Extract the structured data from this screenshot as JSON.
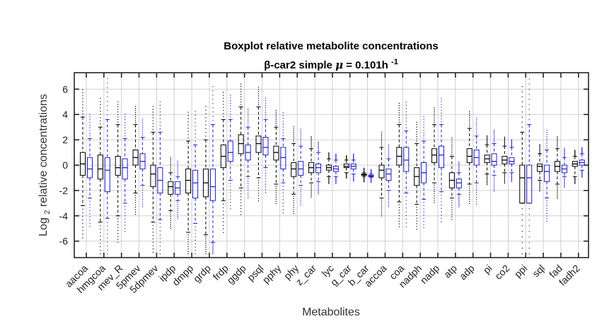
{
  "chart_data": {
    "type": "boxplot",
    "title_line1": "Boxplot relative metabolite concentrations",
    "title_line2_prefix": "β-car2 simple",
    "title_mu": "μ",
    "title_line2_value": " = 0.101h",
    "title_line2_exp": "-1",
    "xlabel": "Metabolites",
    "ylabel_main": "Log",
    "ylabel_sub": "2",
    "ylabel_rest": " relative concentrations",
    "ylim": [
      -7.3,
      7.3
    ],
    "yticks": [
      -6,
      -4,
      -2,
      0,
      2,
      4,
      6
    ],
    "grid": true,
    "series_colors": [
      "#000000",
      "#1f1fcc"
    ],
    "categories": [
      "aacoa",
      "hmgcoa",
      "mev_R",
      "5pmev",
      "5dpmev",
      "ipdp",
      "dmpp",
      "grdp",
      "frdp",
      "ggdp",
      "psql",
      "pphy",
      "phy",
      "z_car",
      "lyc",
      "g_car",
      "b_car",
      "accoa",
      "coa",
      "nadph",
      "nadp",
      "atp",
      "adp",
      "pi",
      "co2",
      "ppi",
      "sql",
      "fad",
      "fadh2"
    ],
    "series": [
      {
        "name": "",
        "boxes": [
          {
            "lw": -3.2,
            "q1": -0.8,
            "med": 0.1,
            "q3": 1.0,
            "uw": 3.8
          },
          {
            "lw": -4.5,
            "q1": -1.1,
            "med": -0.3,
            "q3": 0.8,
            "uw": 3.0
          },
          {
            "lw": -4.0,
            "q1": -0.8,
            "med": -0.2,
            "q3": 0.7,
            "uw": 3.2
          },
          {
            "lw": -2.2,
            "q1": 0.0,
            "med": 0.6,
            "q3": 1.2,
            "uw": 3.2
          },
          {
            "lw": -4.5,
            "q1": -1.7,
            "med": -0.7,
            "q3": 0.0,
            "uw": 2.6
          },
          {
            "lw": -3.6,
            "q1": -2.3,
            "med": -1.7,
            "q3": -1.3,
            "uw": -0.6
          },
          {
            "lw": -5.3,
            "q1": -2.2,
            "med": -1.2,
            "q3": -0.3,
            "uw": 1.9
          },
          {
            "lw": -5.5,
            "q1": -2.5,
            "med": -1.4,
            "q3": -0.3,
            "uw": 2.0
          },
          {
            "lw": -2.8,
            "q1": -0.2,
            "med": 0.7,
            "q3": 1.6,
            "uw": 3.6
          },
          {
            "lw": -1.8,
            "q1": 0.9,
            "med": 1.7,
            "q3": 2.4,
            "uw": 4.6
          },
          {
            "lw": -1.0,
            "q1": 1.0,
            "med": 1.7,
            "q3": 2.3,
            "uw": 4.6
          },
          {
            "lw": -1.5,
            "q1": 0.4,
            "med": 1.0,
            "q3": 1.5,
            "uw": 3.0
          },
          {
            "lw": -2.3,
            "q1": -0.9,
            "med": -0.3,
            "q3": 0.2,
            "uw": 1.7
          },
          {
            "lw": -1.4,
            "q1": -0.6,
            "med": -0.2,
            "q3": 0.2,
            "uw": 1.3
          },
          {
            "lw": -0.9,
            "q1": -0.4,
            "med": -0.2,
            "q3": 0.0,
            "uw": 0.5
          },
          {
            "lw": -0.6,
            "q1": -0.2,
            "med": -0.1,
            "q3": 0.1,
            "uw": 0.4
          },
          {
            "lw": -0.9,
            "q1": -0.8,
            "med": -0.75,
            "q3": -0.7,
            "uw": -0.6
          },
          {
            "lw": -2.6,
            "q1": -1.0,
            "med": -0.4,
            "q3": 0.0,
            "uw": 1.4
          },
          {
            "lw": -2.9,
            "q1": 0.0,
            "med": 0.7,
            "q3": 1.4,
            "uw": 3.2
          },
          {
            "lw": -3.1,
            "q1": -1.6,
            "med": -0.9,
            "q3": -0.2,
            "uw": 1.7
          },
          {
            "lw": -1.4,
            "q1": 0.2,
            "med": 0.8,
            "q3": 1.3,
            "uw": 3.2
          },
          {
            "lw": -2.6,
            "q1": -1.8,
            "med": -1.2,
            "q3": -0.6,
            "uw": 0.7
          },
          {
            "lw": -1.5,
            "q1": 0.2,
            "med": 0.7,
            "q3": 1.3,
            "uw": 2.9
          },
          {
            "lw": -0.7,
            "q1": 0.2,
            "med": 0.5,
            "q3": 0.8,
            "uw": 1.6
          },
          {
            "lw": -0.6,
            "q1": 0.1,
            "med": 0.4,
            "q3": 0.7,
            "uw": 1.5
          },
          {
            "lw": -3.0,
            "q1": -3.0,
            "med": -1.0,
            "q3": 0.0,
            "uw": 2.6
          },
          {
            "lw": -1.2,
            "q1": -0.5,
            "med": -0.1,
            "q3": 0.1,
            "uw": 0.9
          },
          {
            "lw": -1.5,
            "q1": -0.5,
            "med": -0.1,
            "q3": 0.3,
            "uw": 1.3
          },
          {
            "lw": -0.9,
            "q1": -0.1,
            "med": 0.1,
            "q3": 0.3,
            "uw": 0.7
          }
        ]
      },
      {
        "name": "",
        "boxes": [
          {
            "lw": -2.6,
            "q1": -1.0,
            "med": -0.3,
            "q3": 0.6,
            "uw": 2.1
          },
          {
            "lw": -4.2,
            "q1": -2.1,
            "med": -0.4,
            "q3": 0.6,
            "uw": 3.6
          },
          {
            "lw": -3.0,
            "q1": -1.1,
            "med": -0.2,
            "q3": 0.5,
            "uw": 2.1
          },
          {
            "lw": -1.6,
            "q1": -0.3,
            "med": 0.3,
            "q3": 0.9,
            "uw": 2.2
          },
          {
            "lw": -4.3,
            "q1": -2.2,
            "med": -1.2,
            "q3": -0.2,
            "uw": 2.6
          },
          {
            "lw": -2.8,
            "q1": -2.3,
            "med": -1.8,
            "q3": -1.3,
            "uw": -0.9
          },
          {
            "lw": -4.6,
            "q1": -2.6,
            "med": -1.4,
            "q3": -0.4,
            "uw": 1.6
          },
          {
            "lw": -6.1,
            "q1": -2.8,
            "med": -1.7,
            "q3": -0.3,
            "uw": 3.2
          },
          {
            "lw": -1.2,
            "q1": 0.3,
            "med": 1.0,
            "q3": 1.9,
            "uw": 3.6
          },
          {
            "lw": -0.9,
            "q1": 0.4,
            "med": 1.0,
            "q3": 1.6,
            "uw": 3.0
          },
          {
            "lw": -0.2,
            "q1": 0.8,
            "med": 1.4,
            "q3": 2.2,
            "uw": 3.6
          },
          {
            "lw": -1.4,
            "q1": -0.3,
            "med": 0.6,
            "q3": 1.4,
            "uw": 2.1
          },
          {
            "lw": -1.6,
            "q1": -0.8,
            "med": -0.3,
            "q3": 0.3,
            "uw": 1.5
          },
          {
            "lw": -1.3,
            "q1": -0.6,
            "med": -0.2,
            "q3": 0.1,
            "uw": 1.0
          },
          {
            "lw": -0.9,
            "q1": -0.5,
            "med": -0.3,
            "q3": -0.1,
            "uw": 0.4
          },
          {
            "lw": -0.7,
            "q1": -0.3,
            "med": -0.1,
            "q3": 0.1,
            "uw": 0.4
          },
          {
            "lw": -0.95,
            "q1": -0.9,
            "med": -0.85,
            "q3": -0.8,
            "uw": -0.7
          },
          {
            "lw": -2.0,
            "q1": -1.2,
            "med": -0.7,
            "q3": -0.3,
            "uw": 0.5
          },
          {
            "lw": -2.2,
            "q1": -0.5,
            "med": 0.4,
            "q3": 1.4,
            "uw": 2.7
          },
          {
            "lw": -2.7,
            "q1": -1.4,
            "med": -0.6,
            "q3": 0.2,
            "uw": 1.9
          },
          {
            "lw": -2.1,
            "q1": -0.2,
            "med": 0.8,
            "q3": 1.5,
            "uw": 3.2
          },
          {
            "lw": -2.3,
            "q1": -1.8,
            "med": -1.4,
            "q3": -1.1,
            "uw": -0.6
          },
          {
            "lw": -1.4,
            "q1": 0.0,
            "med": 0.6,
            "q3": 1.2,
            "uw": 2.3
          },
          {
            "lw": -0.8,
            "q1": 0.0,
            "med": 0.3,
            "q3": 0.9,
            "uw": 1.7
          },
          {
            "lw": -0.6,
            "q1": 0.1,
            "med": 0.3,
            "q3": 0.6,
            "uw": 1.4
          },
          {
            "lw": -3.0,
            "q1": -3.0,
            "med": -1.0,
            "q3": 0.0,
            "uw": 3.2
          },
          {
            "lw": -2.6,
            "q1": -1.3,
            "med": -0.5,
            "q3": 0.0,
            "uw": 1.2
          },
          {
            "lw": -0.9,
            "q1": -0.6,
            "med": -0.3,
            "q3": 0.0,
            "uw": 0.6
          },
          {
            "lw": -0.4,
            "q1": 0.0,
            "med": 0.2,
            "q3": 0.4,
            "uw": 0.9
          }
        ]
      }
    ]
  }
}
